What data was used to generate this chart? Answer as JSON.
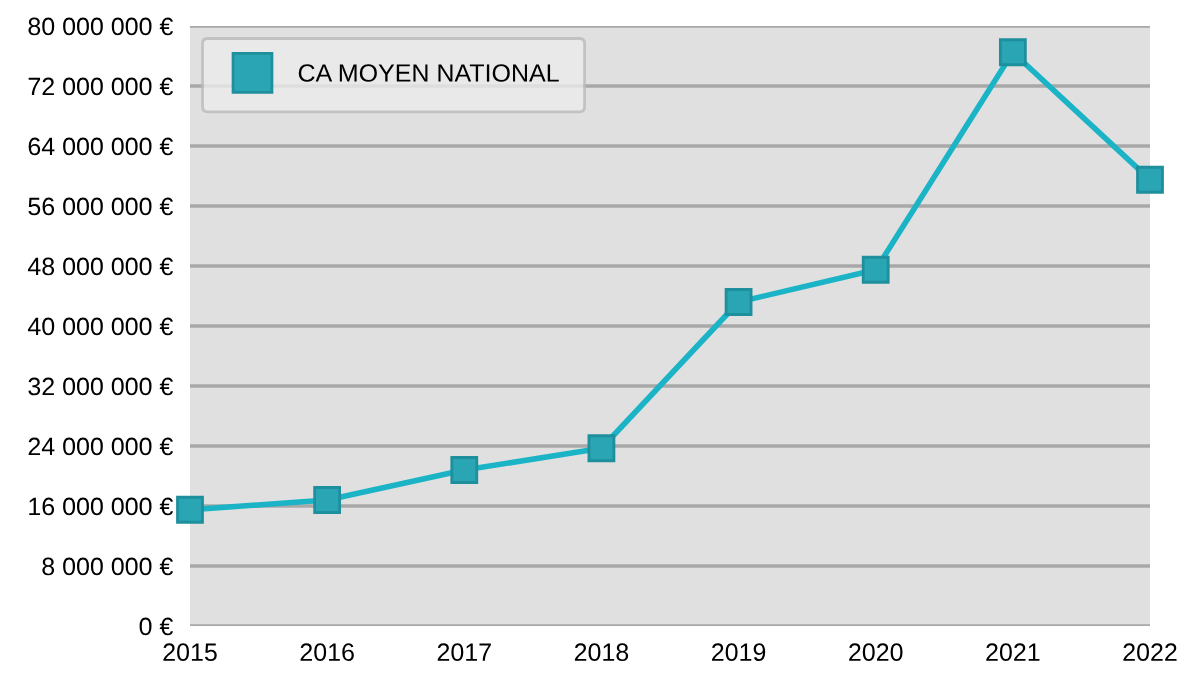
{
  "chart_data": {
    "type": "line",
    "x": [
      2015,
      2016,
      2017,
      2018,
      2019,
      2020,
      2021,
      2022
    ],
    "series": [
      {
        "name": "CA MOYEN NATIONAL",
        "color": "#1ab4c6",
        "values": [
          15500000,
          16800000,
          20800000,
          23700000,
          43200000,
          47500000,
          76500000,
          59500000
        ]
      }
    ],
    "xlim": [
      2015,
      2022
    ],
    "xticks": [
      2015,
      2016,
      2017,
      2018,
      2019,
      2020,
      2021,
      2022
    ],
    "ylim": [
      0,
      80000000
    ],
    "yticks": [
      {
        "value": 0,
        "label": "0 €"
      },
      {
        "value": 8000000,
        "label": "8 000 000 €"
      },
      {
        "value": 16000000,
        "label": "16 000 000 €"
      },
      {
        "value": 24000000,
        "label": "24 000 000 €"
      },
      {
        "value": 32000000,
        "label": "32 000 000 €"
      },
      {
        "value": 40000000,
        "label": "40 000 000 €"
      },
      {
        "value": 48000000,
        "label": "48 000 000 €"
      },
      {
        "value": 56000000,
        "label": "56 000 000 €"
      },
      {
        "value": 64000000,
        "label": "64 000 000 €"
      },
      {
        "value": 72000000,
        "label": "72 000 000 €"
      },
      {
        "value": 80000000,
        "label": "80 000 000 €"
      }
    ],
    "grid": "y",
    "legend": "top left",
    "marker": "square",
    "line_style": "solid"
  }
}
